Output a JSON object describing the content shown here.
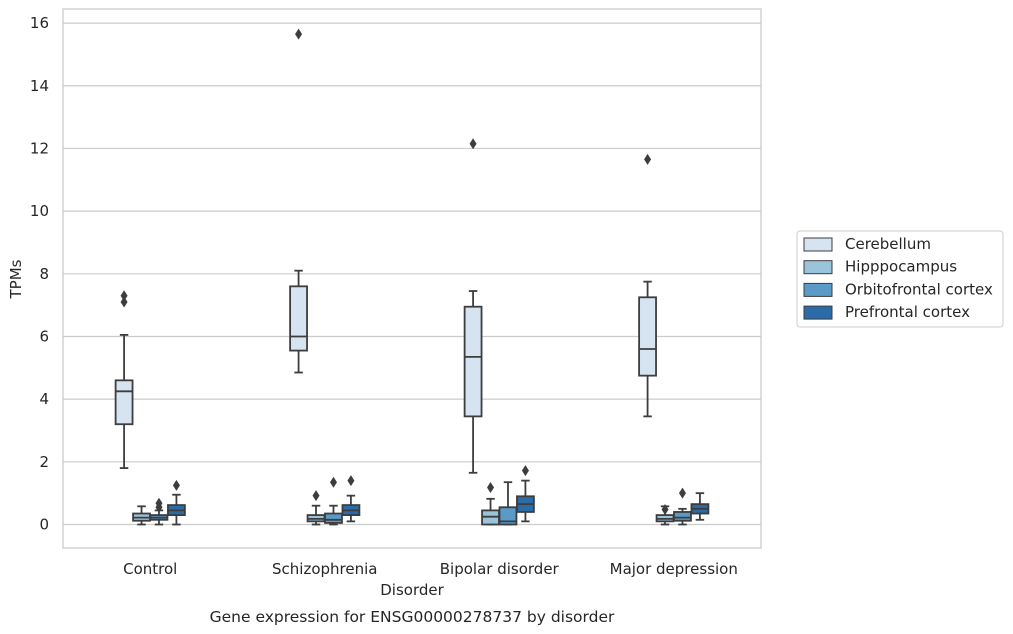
{
  "chart_data": {
    "type": "boxplot",
    "caption": "Gene expression for ENSG00000278737 by disorder",
    "xlabel": "Disorder",
    "ylabel": "TPMs",
    "ylim": [
      -0.75,
      16.45
    ],
    "yticks": [
      0,
      2,
      4,
      6,
      8,
      10,
      12,
      14,
      16
    ],
    "grid": true,
    "legend_position": "right",
    "categories": [
      "Control",
      "Schizophrenia",
      "Bipolar disorder",
      "Major depression"
    ],
    "series": [
      {
        "name": "Cerebellum",
        "color": "#d6e4f2",
        "boxes": [
          {
            "whislo": 1.8,
            "q1": 3.2,
            "med": 4.25,
            "q3": 4.6,
            "whishi": 6.05,
            "fliers": [
              7.1,
              7.3
            ]
          },
          {
            "whislo": 4.85,
            "q1": 5.55,
            "med": 6.0,
            "q3": 7.6,
            "whishi": 8.1,
            "fliers": [
              15.65
            ]
          },
          {
            "whislo": 1.65,
            "q1": 3.45,
            "med": 5.35,
            "q3": 6.95,
            "whishi": 7.45,
            "fliers": [
              12.15
            ]
          },
          {
            "whislo": 3.45,
            "q1": 4.75,
            "med": 5.6,
            "q3": 7.25,
            "whishi": 7.75,
            "fliers": [
              11.65
            ]
          }
        ]
      },
      {
        "name": "Hipppocampus",
        "color": "#9ac3dc",
        "boxes": [
          {
            "whislo": 0.0,
            "q1": 0.12,
            "med": 0.22,
            "q3": 0.35,
            "whishi": 0.58,
            "fliers": []
          },
          {
            "whislo": 0.0,
            "q1": 0.1,
            "med": 0.18,
            "q3": 0.3,
            "whishi": 0.6,
            "fliers": [
              0.92
            ]
          },
          {
            "whislo": 0.0,
            "q1": 0.0,
            "med": 0.25,
            "q3": 0.45,
            "whishi": 0.82,
            "fliers": [
              1.18
            ]
          },
          {
            "whislo": 0.0,
            "q1": 0.1,
            "med": 0.18,
            "q3": 0.3,
            "whishi": 0.58,
            "fliers": [
              0.48
            ]
          }
        ]
      },
      {
        "name": "Orbitofrontal cortex",
        "color": "#5a9ac9",
        "boxes": [
          {
            "whislo": 0.0,
            "q1": 0.15,
            "med": 0.22,
            "q3": 0.3,
            "whishi": 0.45,
            "fliers": [
              0.55,
              0.68
            ]
          },
          {
            "whislo": 0.0,
            "q1": 0.05,
            "med": 0.15,
            "q3": 0.35,
            "whishi": 0.6,
            "fliers": [
              1.35
            ]
          },
          {
            "whislo": 0.0,
            "q1": 0.0,
            "med": 0.1,
            "q3": 0.55,
            "whishi": 1.35,
            "fliers": []
          },
          {
            "whislo": 0.0,
            "q1": 0.12,
            "med": 0.22,
            "q3": 0.4,
            "whishi": 0.5,
            "fliers": [
              1.0
            ]
          }
        ]
      },
      {
        "name": "Prefrontal cortex",
        "color": "#2a6ba8",
        "boxes": [
          {
            "whislo": 0.0,
            "q1": 0.3,
            "med": 0.45,
            "q3": 0.62,
            "whishi": 0.95,
            "fliers": [
              1.25
            ]
          },
          {
            "whislo": 0.1,
            "q1": 0.3,
            "med": 0.45,
            "q3": 0.62,
            "whishi": 0.92,
            "fliers": [
              1.4
            ]
          },
          {
            "whislo": 0.1,
            "q1": 0.4,
            "med": 0.65,
            "q3": 0.9,
            "whishi": 1.4,
            "fliers": [
              1.72
            ]
          },
          {
            "whislo": 0.15,
            "q1": 0.35,
            "med": 0.5,
            "q3": 0.65,
            "whishi": 1.0,
            "fliers": []
          }
        ]
      }
    ]
  }
}
